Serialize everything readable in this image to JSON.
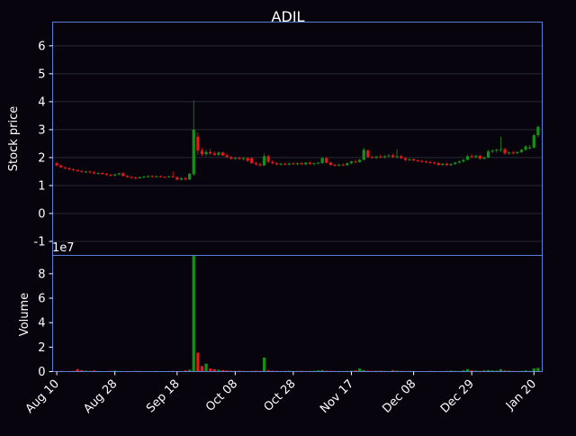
{
  "chart_data": {
    "type": "candlestick",
    "title": "ADIL",
    "colors": {
      "background": "#07040d",
      "up": "#1a8c1a",
      "down": "#e01b1b",
      "frame": "#5b7fd6",
      "grid": "#2a2a35"
    },
    "price_panel": {
      "ylabel": "Stock price",
      "ylim": [
        -1.5,
        6.85
      ],
      "yticks": [
        "-1",
        "0",
        "1",
        "2",
        "3",
        "4",
        "5",
        "6"
      ],
      "grid": true
    },
    "volume_panel": {
      "ylabel": "Volume",
      "scale_label": "1e7",
      "ylim": [
        0,
        9.5
      ],
      "yticks": [
        "0",
        "2",
        "4",
        "6",
        "8"
      ]
    },
    "xaxis": {
      "tick_labels": [
        "Aug 10",
        "Aug 28",
        "Sep 18",
        "Oct 08",
        "Oct 28",
        "Nov 17",
        "Dec 08",
        "Dec 29",
        "Jan 20"
      ],
      "tick_index": [
        0,
        14,
        29,
        43,
        57,
        71,
        86,
        100,
        115
      ]
    },
    "candles": [
      {
        "o": 1.8,
        "h": 1.85,
        "l": 1.68,
        "c": 1.72
      },
      {
        "o": 1.72,
        "h": 1.76,
        "l": 1.63,
        "c": 1.65
      },
      {
        "o": 1.65,
        "h": 1.68,
        "l": 1.58,
        "c": 1.62
      },
      {
        "o": 1.62,
        "h": 1.65,
        "l": 1.55,
        "c": 1.58
      },
      {
        "o": 1.58,
        "h": 1.62,
        "l": 1.52,
        "c": 1.55
      },
      {
        "o": 1.55,
        "h": 1.58,
        "l": 1.48,
        "c": 1.52
      },
      {
        "o": 1.52,
        "h": 1.55,
        "l": 1.46,
        "c": 1.49
      },
      {
        "o": 1.49,
        "h": 1.53,
        "l": 1.45,
        "c": 1.5
      },
      {
        "o": 1.5,
        "h": 1.54,
        "l": 1.44,
        "c": 1.47
      },
      {
        "o": 1.47,
        "h": 1.52,
        "l": 1.4,
        "c": 1.43
      },
      {
        "o": 1.43,
        "h": 1.48,
        "l": 1.4,
        "c": 1.45
      },
      {
        "o": 1.45,
        "h": 1.48,
        "l": 1.38,
        "c": 1.41
      },
      {
        "o": 1.41,
        "h": 1.45,
        "l": 1.35,
        "c": 1.38
      },
      {
        "o": 1.38,
        "h": 1.42,
        "l": 1.33,
        "c": 1.36
      },
      {
        "o": 1.36,
        "h": 1.42,
        "l": 1.33,
        "c": 1.4
      },
      {
        "o": 1.4,
        "h": 1.45,
        "l": 1.36,
        "c": 1.44
      },
      {
        "o": 1.44,
        "h": 1.48,
        "l": 1.32,
        "c": 1.34
      },
      {
        "o": 1.34,
        "h": 1.38,
        "l": 1.28,
        "c": 1.3
      },
      {
        "o": 1.3,
        "h": 1.34,
        "l": 1.25,
        "c": 1.28
      },
      {
        "o": 1.28,
        "h": 1.32,
        "l": 1.22,
        "c": 1.26
      },
      {
        "o": 1.26,
        "h": 1.32,
        "l": 1.24,
        "c": 1.3
      },
      {
        "o": 1.3,
        "h": 1.34,
        "l": 1.26,
        "c": 1.32
      },
      {
        "o": 1.32,
        "h": 1.36,
        "l": 1.28,
        "c": 1.34
      },
      {
        "o": 1.34,
        "h": 1.37,
        "l": 1.28,
        "c": 1.31
      },
      {
        "o": 1.31,
        "h": 1.36,
        "l": 1.28,
        "c": 1.33
      },
      {
        "o": 1.33,
        "h": 1.36,
        "l": 1.29,
        "c": 1.31
      },
      {
        "o": 1.31,
        "h": 1.34,
        "l": 1.27,
        "c": 1.3
      },
      {
        "o": 1.3,
        "h": 1.35,
        "l": 1.28,
        "c": 1.33
      },
      {
        "o": 1.33,
        "h": 1.5,
        "l": 1.28,
        "c": 1.3
      },
      {
        "o": 1.3,
        "h": 1.33,
        "l": 1.18,
        "c": 1.21
      },
      {
        "o": 1.21,
        "h": 1.3,
        "l": 1.18,
        "c": 1.26
      },
      {
        "o": 1.26,
        "h": 1.32,
        "l": 1.18,
        "c": 1.22
      },
      {
        "o": 1.22,
        "h": 1.45,
        "l": 1.2,
        "c": 1.42
      },
      {
        "o": 1.4,
        "h": 4.05,
        "l": 1.35,
        "c": 3.0
      },
      {
        "o": 2.75,
        "h": 2.9,
        "l": 2.1,
        "c": 2.25
      },
      {
        "o": 2.25,
        "h": 2.35,
        "l": 2.05,
        "c": 2.12
      },
      {
        "o": 2.12,
        "h": 2.28,
        "l": 2.05,
        "c": 2.2
      },
      {
        "o": 2.2,
        "h": 2.32,
        "l": 2.08,
        "c": 2.15
      },
      {
        "o": 2.15,
        "h": 2.22,
        "l": 2.06,
        "c": 2.1
      },
      {
        "o": 2.1,
        "h": 2.22,
        "l": 2.05,
        "c": 2.18
      },
      {
        "o": 2.18,
        "h": 2.22,
        "l": 2.05,
        "c": 2.08
      },
      {
        "o": 2.08,
        "h": 2.15,
        "l": 1.98,
        "c": 2.02
      },
      {
        "o": 2.02,
        "h": 2.06,
        "l": 1.92,
        "c": 1.96
      },
      {
        "o": 1.96,
        "h": 2.02,
        "l": 1.92,
        "c": 1.99
      },
      {
        "o": 1.99,
        "h": 2.04,
        "l": 1.92,
        "c": 1.95
      },
      {
        "o": 1.95,
        "h": 2.02,
        "l": 1.9,
        "c": 1.98
      },
      {
        "o": 1.98,
        "h": 2.02,
        "l": 1.85,
        "c": 1.88
      },
      {
        "o": 1.98,
        "h": 2.02,
        "l": 1.78,
        "c": 1.8
      },
      {
        "o": 1.8,
        "h": 1.85,
        "l": 1.72,
        "c": 1.76
      },
      {
        "o": 1.76,
        "h": 1.82,
        "l": 1.68,
        "c": 1.72
      },
      {
        "o": 1.72,
        "h": 2.15,
        "l": 1.7,
        "c": 2.05
      },
      {
        "o": 2.05,
        "h": 2.1,
        "l": 1.8,
        "c": 1.85
      },
      {
        "o": 1.85,
        "h": 1.9,
        "l": 1.75,
        "c": 1.8
      },
      {
        "o": 1.8,
        "h": 1.84,
        "l": 1.72,
        "c": 1.76
      },
      {
        "o": 1.76,
        "h": 1.82,
        "l": 1.7,
        "c": 1.78
      },
      {
        "o": 1.78,
        "h": 1.82,
        "l": 1.72,
        "c": 1.75
      },
      {
        "o": 1.75,
        "h": 1.82,
        "l": 1.72,
        "c": 1.79
      },
      {
        "o": 1.79,
        "h": 1.84,
        "l": 1.74,
        "c": 1.77
      },
      {
        "o": 1.77,
        "h": 1.82,
        "l": 1.72,
        "c": 1.8
      },
      {
        "o": 1.8,
        "h": 1.84,
        "l": 1.74,
        "c": 1.76
      },
      {
        "o": 1.76,
        "h": 1.84,
        "l": 1.72,
        "c": 1.82
      },
      {
        "o": 1.82,
        "h": 1.86,
        "l": 1.74,
        "c": 1.77
      },
      {
        "o": 1.77,
        "h": 1.82,
        "l": 1.72,
        "c": 1.8
      },
      {
        "o": 1.8,
        "h": 1.84,
        "l": 1.75,
        "c": 1.82
      },
      {
        "o": 1.8,
        "h": 2.02,
        "l": 1.78,
        "c": 1.98
      },
      {
        "o": 1.98,
        "h": 2.02,
        "l": 1.78,
        "c": 1.82
      },
      {
        "o": 1.82,
        "h": 1.85,
        "l": 1.7,
        "c": 1.74
      },
      {
        "o": 1.74,
        "h": 1.78,
        "l": 1.68,
        "c": 1.72
      },
      {
        "o": 1.72,
        "h": 1.78,
        "l": 1.68,
        "c": 1.75
      },
      {
        "o": 1.75,
        "h": 1.8,
        "l": 1.7,
        "c": 1.73
      },
      {
        "o": 1.73,
        "h": 1.82,
        "l": 1.7,
        "c": 1.8
      },
      {
        "o": 1.8,
        "h": 1.88,
        "l": 1.76,
        "c": 1.86
      },
      {
        "o": 1.86,
        "h": 1.92,
        "l": 1.8,
        "c": 1.84
      },
      {
        "o": 1.84,
        "h": 1.95,
        "l": 1.82,
        "c": 1.92
      },
      {
        "o": 1.92,
        "h": 2.35,
        "l": 1.9,
        "c": 2.28
      },
      {
        "o": 2.25,
        "h": 2.3,
        "l": 1.98,
        "c": 2.02
      },
      {
        "o": 2.02,
        "h": 2.08,
        "l": 1.96,
        "c": 2.0
      },
      {
        "o": 2.0,
        "h": 2.06,
        "l": 1.94,
        "c": 2.04
      },
      {
        "o": 2.04,
        "h": 2.1,
        "l": 1.98,
        "c": 2.02
      },
      {
        "o": 2.02,
        "h": 2.08,
        "l": 1.96,
        "c": 2.05
      },
      {
        "o": 2.05,
        "h": 2.12,
        "l": 2.0,
        "c": 2.08
      },
      {
        "o": 2.08,
        "h": 2.14,
        "l": 1.98,
        "c": 2.02
      },
      {
        "o": 2.02,
        "h": 2.3,
        "l": 1.98,
        "c": 2.05
      },
      {
        "o": 2.05,
        "h": 2.1,
        "l": 1.94,
        "c": 1.98
      },
      {
        "o": 1.98,
        "h": 2.02,
        "l": 1.88,
        "c": 1.92
      },
      {
        "o": 1.92,
        "h": 1.98,
        "l": 1.88,
        "c": 1.94
      },
      {
        "o": 1.94,
        "h": 1.98,
        "l": 1.86,
        "c": 1.9
      },
      {
        "o": 1.9,
        "h": 1.94,
        "l": 1.84,
        "c": 1.88
      },
      {
        "o": 1.88,
        "h": 1.92,
        "l": 1.82,
        "c": 1.86
      },
      {
        "o": 1.86,
        "h": 1.9,
        "l": 1.8,
        "c": 1.84
      },
      {
        "o": 1.84,
        "h": 1.88,
        "l": 1.78,
        "c": 1.82
      },
      {
        "o": 1.82,
        "h": 1.86,
        "l": 1.76,
        "c": 1.8
      },
      {
        "o": 1.8,
        "h": 1.84,
        "l": 1.7,
        "c": 1.74
      },
      {
        "o": 1.74,
        "h": 1.8,
        "l": 1.7,
        "c": 1.78
      },
      {
        "o": 1.78,
        "h": 1.82,
        "l": 1.7,
        "c": 1.73
      },
      {
        "o": 1.73,
        "h": 1.8,
        "l": 1.7,
        "c": 1.77
      },
      {
        "o": 1.77,
        "h": 1.85,
        "l": 1.74,
        "c": 1.82
      },
      {
        "o": 1.82,
        "h": 1.9,
        "l": 1.78,
        "c": 1.86
      },
      {
        "o": 1.86,
        "h": 1.95,
        "l": 1.82,
        "c": 1.92
      },
      {
        "o": 1.92,
        "h": 2.1,
        "l": 1.9,
        "c": 2.05
      },
      {
        "o": 2.05,
        "h": 2.12,
        "l": 1.98,
        "c": 2.02
      },
      {
        "o": 2.02,
        "h": 2.1,
        "l": 1.98,
        "c": 2.06
      },
      {
        "o": 2.06,
        "h": 2.1,
        "l": 1.92,
        "c": 1.96
      },
      {
        "o": 1.96,
        "h": 2.04,
        "l": 1.92,
        "c": 2.0
      },
      {
        "o": 2.0,
        "h": 2.28,
        "l": 1.98,
        "c": 2.22
      },
      {
        "o": 2.22,
        "h": 2.3,
        "l": 2.15,
        "c": 2.25
      },
      {
        "o": 2.25,
        "h": 2.32,
        "l": 2.18,
        "c": 2.28
      },
      {
        "o": 2.28,
        "h": 2.75,
        "l": 2.2,
        "c": 2.3
      },
      {
        "o": 2.3,
        "h": 2.35,
        "l": 2.1,
        "c": 2.15
      },
      {
        "o": 2.15,
        "h": 2.22,
        "l": 2.1,
        "c": 2.18
      },
      {
        "o": 2.18,
        "h": 2.25,
        "l": 2.12,
        "c": 2.16
      },
      {
        "o": 2.16,
        "h": 2.22,
        "l": 2.12,
        "c": 2.2
      },
      {
        "o": 2.2,
        "h": 2.32,
        "l": 2.16,
        "c": 2.28
      },
      {
        "o": 2.28,
        "h": 2.45,
        "l": 2.24,
        "c": 2.4
      },
      {
        "o": 2.32,
        "h": 2.45,
        "l": 2.3,
        "c": 2.36
      },
      {
        "o": 2.36,
        "h": 2.85,
        "l": 2.32,
        "c": 2.8
      },
      {
        "o": 2.8,
        "h": 3.15,
        "l": 2.72,
        "c": 3.1
      }
    ],
    "volume": [
      0.05,
      0.06,
      0.04,
      0.05,
      0.06,
      0.2,
      0.12,
      0.08,
      0.06,
      0.1,
      0.05,
      0.04,
      0.05,
      0.06,
      0.08,
      0.05,
      0.04,
      0.05,
      0.04,
      0.06,
      0.05,
      0.04,
      0.03,
      0.04,
      0.05,
      0.04,
      0.03,
      0.05,
      0.06,
      0.04,
      0.05,
      0.1,
      0.15,
      9.6,
      1.55,
      0.45,
      0.65,
      0.25,
      0.2,
      0.15,
      0.12,
      0.1,
      0.08,
      0.06,
      0.08,
      0.06,
      0.05,
      0.06,
      0.08,
      0.06,
      1.15,
      0.12,
      0.08,
      0.06,
      0.05,
      0.06,
      0.07,
      0.05,
      0.06,
      0.08,
      0.05,
      0.06,
      0.07,
      0.1,
      0.12,
      0.08,
      0.06,
      0.05,
      0.06,
      0.05,
      0.06,
      0.08,
      0.1,
      0.25,
      0.12,
      0.08,
      0.06,
      0.07,
      0.08,
      0.06,
      0.05,
      0.12,
      0.08,
      0.06,
      0.05,
      0.06,
      0.05,
      0.04,
      0.05,
      0.04,
      0.06,
      0.05,
      0.04,
      0.05,
      0.06,
      0.08,
      0.06,
      0.05,
      0.1,
      0.2,
      0.1,
      0.08,
      0.06,
      0.1,
      0.12,
      0.1,
      0.08,
      0.2,
      0.1,
      0.08,
      0.06,
      0.05,
      0.06,
      0.1,
      0.06,
      0.25,
      0.3
    ]
  }
}
